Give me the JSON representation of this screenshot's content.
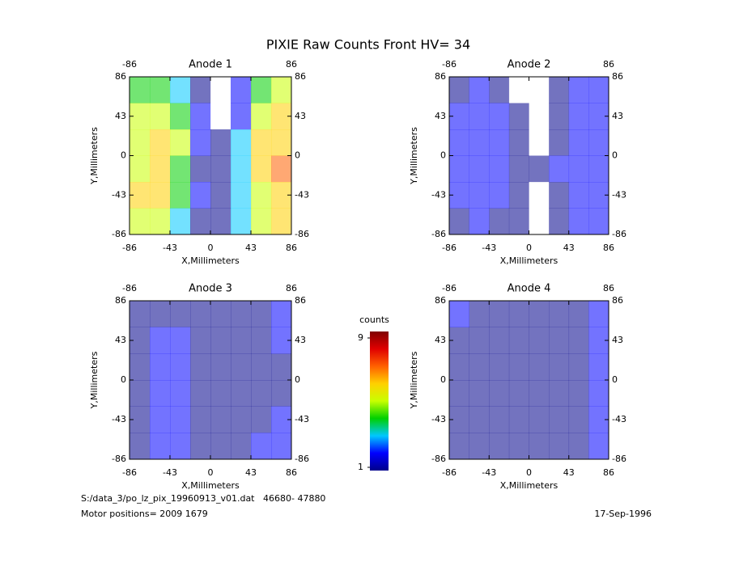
{
  "title": "PIXIE Raw Counts Front HV= 34",
  "chart_data": [
    {
      "type": "heatmap",
      "title": "Anode 1",
      "xlabel": "X,Millimeters",
      "ylabel": "Y,Millimeters",
      "xlim": [
        -86,
        86
      ],
      "ylim": [
        -86,
        86
      ],
      "xticks": [
        -86,
        -43,
        0,
        43,
        86
      ],
      "yticks": [
        -86,
        -43,
        0,
        43,
        86
      ],
      "values": [
        [
          4,
          4,
          3,
          1,
          0,
          2,
          4,
          5
        ],
        [
          5,
          5,
          4,
          2,
          0,
          2,
          5,
          6
        ],
        [
          5,
          6,
          5,
          2,
          1,
          3,
          6,
          6
        ],
        [
          5,
          6,
          4,
          1,
          1,
          3,
          6,
          7
        ],
        [
          6,
          6,
          4,
          2,
          1,
          3,
          5,
          6
        ],
        [
          5,
          5,
          3,
          1,
          1,
          3,
          5,
          6
        ]
      ]
    },
    {
      "type": "heatmap",
      "title": "Anode 2",
      "xlabel": "X,Millimeters",
      "ylabel": "Y,Millimeters",
      "xlim": [
        -86,
        86
      ],
      "ylim": [
        -86,
        86
      ],
      "xticks": [
        -86,
        -43,
        0,
        43,
        86
      ],
      "yticks": [
        -86,
        -43,
        0,
        43,
        86
      ],
      "values": [
        [
          1,
          2,
          1,
          0,
          0,
          1,
          2,
          2
        ],
        [
          2,
          2,
          2,
          1,
          0,
          1,
          2,
          2
        ],
        [
          2,
          2,
          2,
          1,
          0,
          1,
          2,
          2
        ],
        [
          2,
          2,
          2,
          1,
          1,
          2,
          2,
          2
        ],
        [
          2,
          2,
          2,
          1,
          0,
          1,
          2,
          2
        ],
        [
          1,
          2,
          1,
          1,
          0,
          1,
          2,
          2
        ]
      ]
    },
    {
      "type": "heatmap",
      "title": "Anode 3",
      "xlabel": "X,Millimeters",
      "ylabel": "Y,Millimeters",
      "xlim": [
        -86,
        86
      ],
      "ylim": [
        -86,
        86
      ],
      "xticks": [
        -86,
        -43,
        0,
        43,
        86
      ],
      "yticks": [
        -86,
        -43,
        0,
        43,
        86
      ],
      "values": [
        [
          1,
          1,
          1,
          1,
          1,
          1,
          1,
          2
        ],
        [
          1,
          2,
          2,
          1,
          1,
          1,
          1,
          2
        ],
        [
          1,
          2,
          2,
          1,
          1,
          1,
          1,
          1
        ],
        [
          1,
          2,
          2,
          1,
          1,
          1,
          1,
          1
        ],
        [
          1,
          2,
          2,
          1,
          1,
          1,
          1,
          2
        ],
        [
          1,
          2,
          2,
          1,
          1,
          1,
          2,
          2
        ]
      ]
    },
    {
      "type": "heatmap",
      "title": "Anode 4",
      "xlabel": "X,Millimeters",
      "ylabel": "Y,Millimeters",
      "xlim": [
        -86,
        86
      ],
      "ylim": [
        -86,
        86
      ],
      "xticks": [
        -86,
        -43,
        0,
        43,
        86
      ],
      "yticks": [
        -86,
        -43,
        0,
        43,
        86
      ],
      "values": [
        [
          2,
          1,
          1,
          1,
          1,
          1,
          1,
          2
        ],
        [
          1,
          1,
          1,
          1,
          1,
          1,
          1,
          2
        ],
        [
          1,
          1,
          1,
          1,
          1,
          1,
          1,
          2
        ],
        [
          1,
          1,
          1,
          1,
          1,
          1,
          1,
          2
        ],
        [
          1,
          1,
          1,
          1,
          1,
          1,
          1,
          2
        ],
        [
          1,
          1,
          1,
          1,
          1,
          1,
          1,
          2
        ]
      ]
    }
  ],
  "colorbar": {
    "label": "counts",
    "lim": [
      1,
      9
    ],
    "ticks": [
      1,
      9
    ],
    "colors": [
      "#00008b",
      "#0000ff",
      "#00c8ff",
      "#00d000",
      "#c8ff00",
      "#ffd000",
      "#ff6000",
      "#e00000",
      "#800000"
    ]
  },
  "footer": {
    "file": "S:/data_3/po_lz_pix_19960913_v01.dat   46680- 47880",
    "motor": "Motor positions= 2009 1679",
    "date": "17-Sep-1996"
  }
}
